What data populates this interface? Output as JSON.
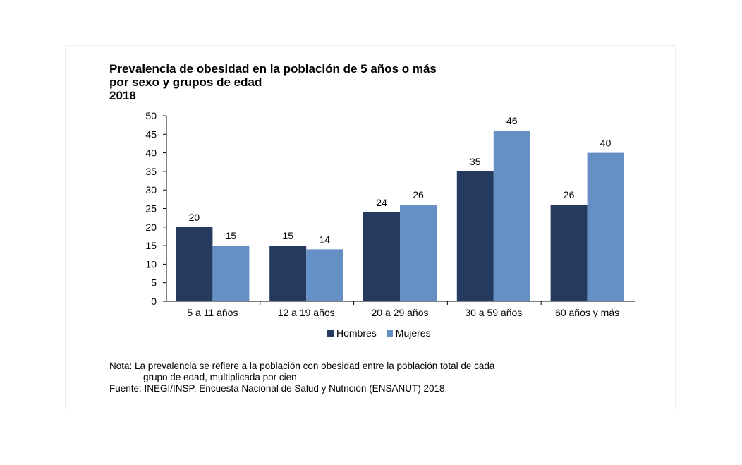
{
  "title": {
    "line1": "Prevalencia de obesidad en la población de 5 años o más",
    "line2": "por sexo y grupos de edad",
    "line3": "2018"
  },
  "notes": {
    "nota_line1": "Nota: La prevalencia se refiere a la población con obesidad entre la población total de cada",
    "nota_line2": "grupo de edad, multiplicada por cien.",
    "fuente": "Fuente: INEGI/INSP. Encuesta Nacional de Salud y Nutrición (ENSANUT) 2018."
  },
  "colors": {
    "hombres": "#243a5e",
    "mujeres": "#6590c6"
  },
  "chart_data": {
    "type": "bar",
    "title": "Prevalencia de obesidad en la población de 5 años o más por sexo y grupos de edad 2018",
    "xlabel": "",
    "ylabel": "",
    "ylim": [
      0,
      50
    ],
    "yticks": [
      0,
      5,
      10,
      15,
      20,
      25,
      30,
      35,
      40,
      45,
      50
    ],
    "categories": [
      "5 a 11 años",
      "12 a 19 años",
      "20 a 29 años",
      "30 a 59 años",
      "60 años y más"
    ],
    "series": [
      {
        "name": "Hombres",
        "values": [
          20,
          15,
          24,
          35,
          26
        ]
      },
      {
        "name": "Mujeres",
        "values": [
          15,
          14,
          26,
          46,
          40
        ]
      }
    ],
    "grid": false,
    "legend": "bottom"
  }
}
